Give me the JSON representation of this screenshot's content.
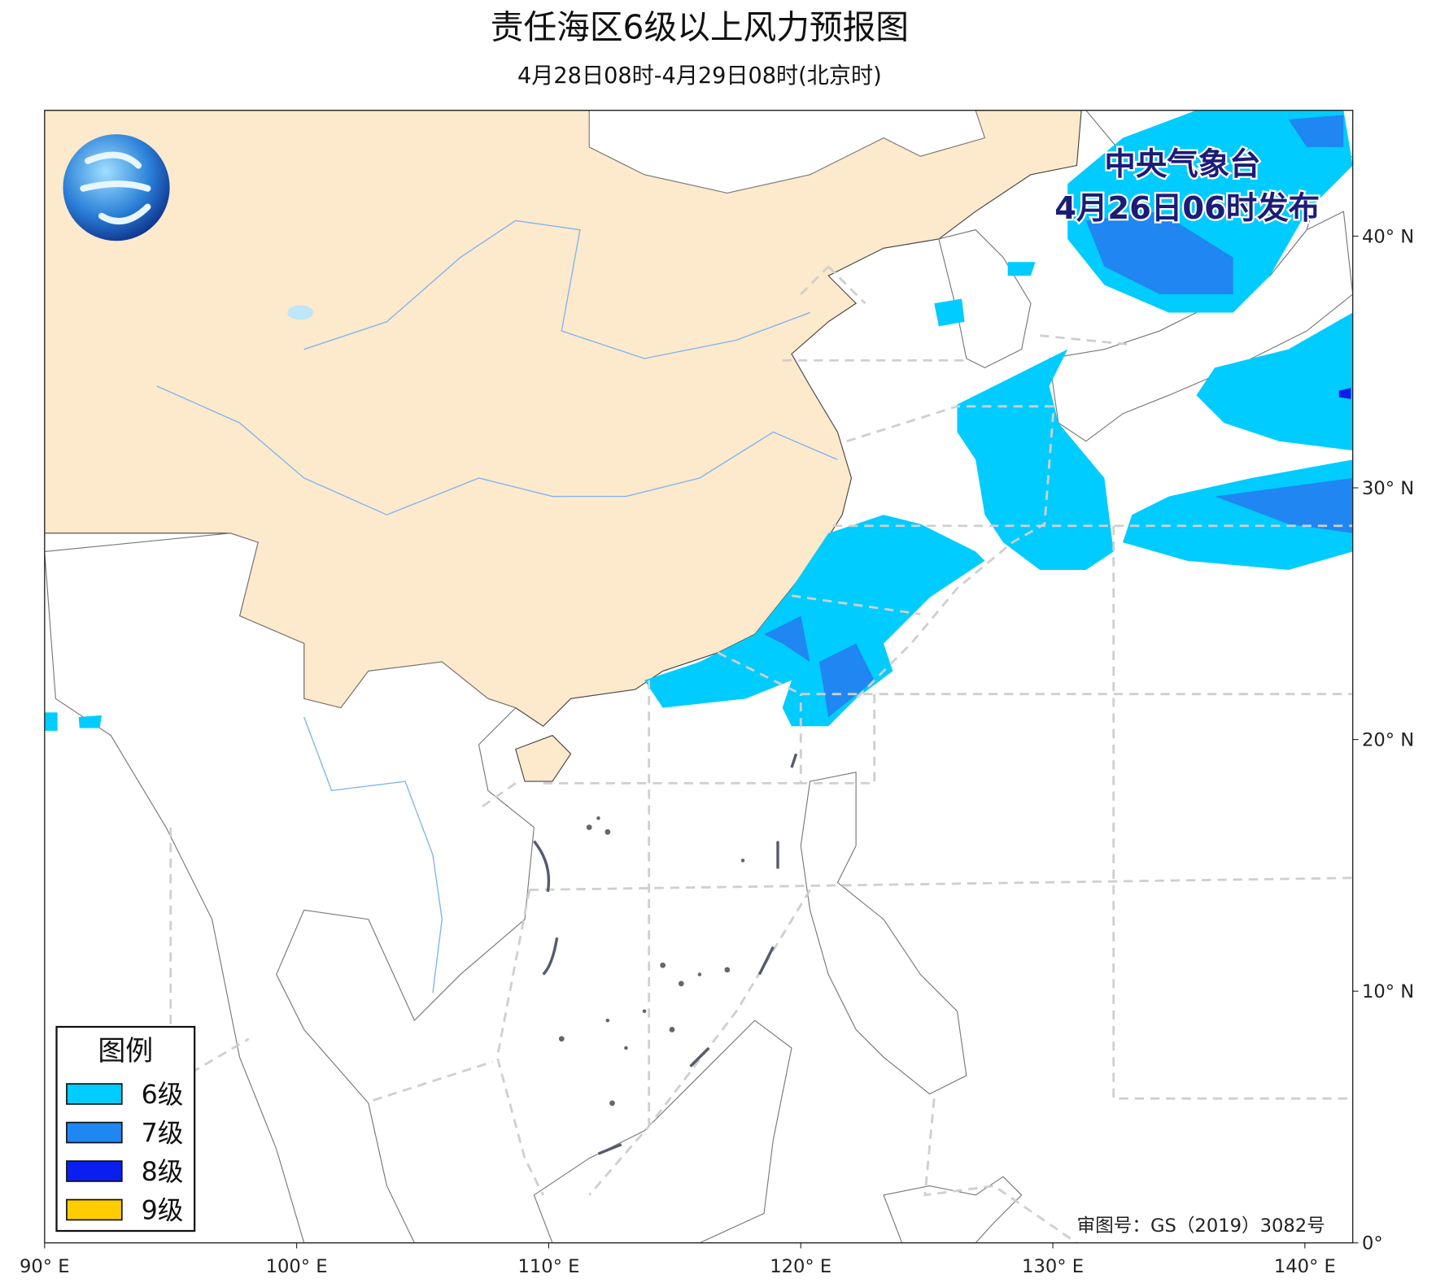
{
  "header": {
    "title": "责任海区6级以上风力预报图",
    "subtitle": "4月28日08时-4月29日08时(北京时)"
  },
  "issuer": {
    "name": "中央气象台",
    "time": "4月26日06时发布"
  },
  "map": {
    "xlim": [
      90,
      141.9
    ],
    "ylim": [
      0,
      45
    ],
    "xticks": [
      {
        "value": 90,
        "label": "90° E"
      },
      {
        "value": 100,
        "label": "100° E"
      },
      {
        "value": 110,
        "label": "110° E"
      },
      {
        "value": 120,
        "label": "120° E"
      },
      {
        "value": 130,
        "label": "130° E"
      },
      {
        "value": 140,
        "label": "140° E"
      }
    ],
    "yticks": [
      {
        "value": 0,
        "label": "0°"
      },
      {
        "value": 10,
        "label": "10° N"
      },
      {
        "value": 20,
        "label": "20° N"
      },
      {
        "value": 30,
        "label": "30° N"
      },
      {
        "value": 40,
        "label": "40° N"
      }
    ]
  },
  "legend": {
    "title": "图例",
    "items": [
      {
        "label": "6级",
        "color": "#00ccff"
      },
      {
        "label": "7级",
        "color": "#1f86f2"
      },
      {
        "label": "8级",
        "color": "#0a1ef0"
      },
      {
        "label": "9级",
        "color": "#ffcc00"
      }
    ]
  },
  "footer": {
    "approval": "审图号：GS（2019）3082号"
  }
}
